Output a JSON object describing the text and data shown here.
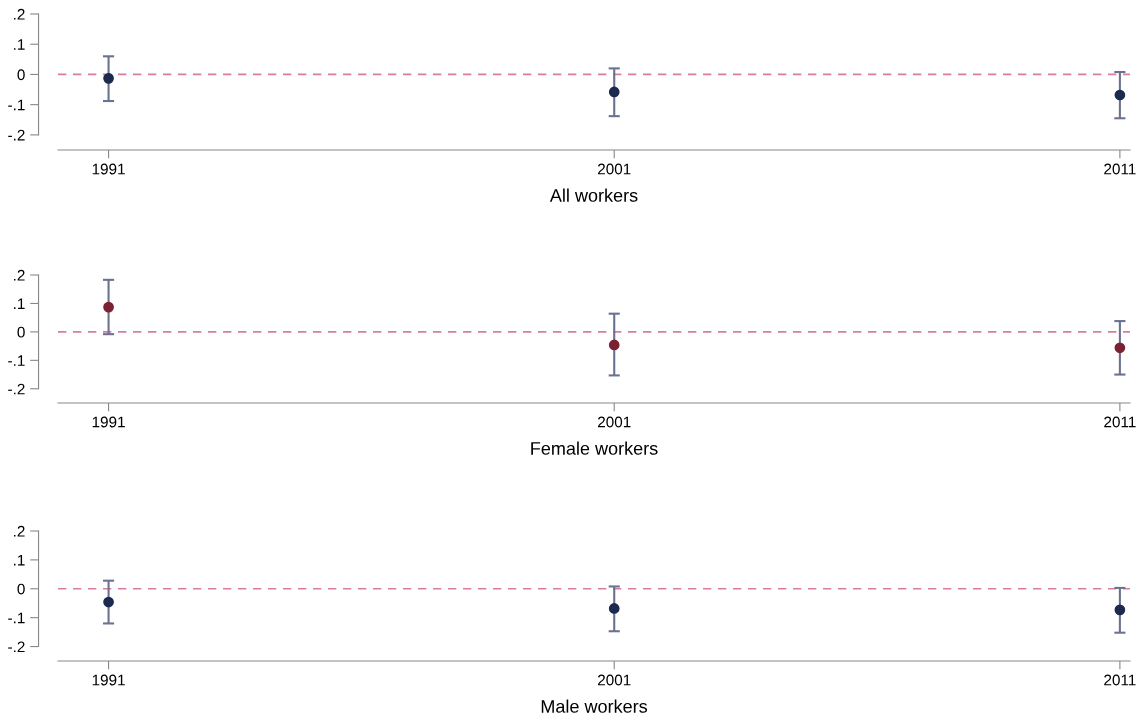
{
  "chart_data": [
    {
      "type": "scatter",
      "xlabel": "All workers",
      "x": [
        1991,
        2001,
        2011
      ],
      "xlim": [
        1990,
        2011.2
      ],
      "xticks": [
        1991,
        2001,
        2011
      ],
      "ylim": [
        -0.25,
        0.2
      ],
      "yticks": [
        {
          "value": 0.2,
          "label": ".2"
        },
        {
          "value": 0.1,
          "label": ".1"
        },
        0,
        {
          "value": -0.1,
          "label": "-.1"
        },
        {
          "value": -0.2,
          "label": "-.2"
        }
      ],
      "series": [
        {
          "color": "#1b2a4e",
          "values": [
            -0.013,
            -0.058,
            -0.068
          ],
          "errors": [
            [
              -0.088,
              0.06
            ],
            [
              -0.138,
              0.02
            ],
            [
              -0.145,
              0.008
            ]
          ]
        }
      ],
      "ref_lines": [
        {
          "axis": "y",
          "value": 0,
          "color": "#d87ca2",
          "line_style": "dashed"
        }
      ],
      "marker": "circle",
      "grid": false
    },
    {
      "type": "scatter",
      "xlabel": "Female workers",
      "x": [
        1991,
        2001,
        2011
      ],
      "xlim": [
        1990,
        2011.2
      ],
      "xticks": [
        1991,
        2001,
        2011
      ],
      "ylim": [
        -0.25,
        0.2
      ],
      "yticks": [
        {
          "value": 0.2,
          "label": ".2"
        },
        {
          "value": 0.1,
          "label": ".1"
        },
        0,
        {
          "value": -0.1,
          "label": "-.1"
        },
        {
          "value": -0.2,
          "label": "-.2"
        }
      ],
      "series": [
        {
          "color": "#7b2232",
          "values": [
            0.087,
            -0.046,
            -0.056
          ],
          "errors": [
            [
              -0.008,
              0.183
            ],
            [
              -0.153,
              0.064
            ],
            [
              -0.15,
              0.038
            ]
          ]
        }
      ],
      "ref_lines": [
        {
          "axis": "y",
          "value": 0,
          "color": "#d87ca2",
          "line_style": "dashed"
        }
      ],
      "marker": "circle",
      "grid": false
    },
    {
      "type": "scatter",
      "xlabel": "Male workers",
      "x": [
        1991,
        2001,
        2011
      ],
      "xlim": [
        1990,
        2011.2
      ],
      "xticks": [
        1991,
        2001,
        2011
      ],
      "ylim": [
        -0.25,
        0.2
      ],
      "yticks": [
        {
          "value": 0.2,
          "label": ".2"
        },
        {
          "value": 0.1,
          "label": ".1"
        },
        0,
        {
          "value": -0.1,
          "label": "-.1"
        },
        {
          "value": -0.2,
          "label": "-.2"
        }
      ],
      "series": [
        {
          "color": "#1b2a4e",
          "values": [
            -0.046,
            -0.068,
            -0.073
          ],
          "errors": [
            [
              -0.12,
              0.028
            ],
            [
              -0.147,
              0.008
            ],
            [
              -0.152,
              0.003
            ]
          ]
        }
      ],
      "ref_lines": [
        {
          "axis": "y",
          "value": 0,
          "color": "#d87ca2",
          "line_style": "dashed"
        }
      ],
      "marker": "circle",
      "grid": false
    }
  ]
}
